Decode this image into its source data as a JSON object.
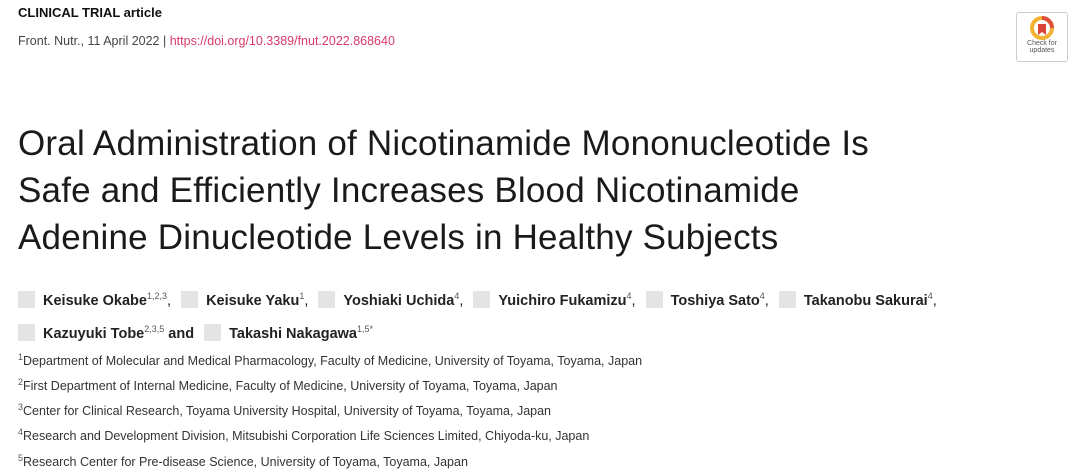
{
  "article_type": "CLINICAL TRIAL article",
  "journal": "Front. Nutr., 11 April 2022 |",
  "doi": "https://doi.org/10.3389/fnut.2022.868640",
  "badge": [
    "Check for",
    "updates"
  ],
  "title_lines": [
    "Oral Administration of Nicotinamide Mononucleotide Is",
    "Safe and Efficiently Increases Blood Nicotinamide",
    "Adenine Dinucleotide Levels in Healthy Subjects"
  ],
  "authors": [
    {
      "name": "Keisuke Okabe",
      "sup": "1,2,3",
      "separator": ","
    },
    {
      "name": "Keisuke Yaku",
      "sup": "1",
      "separator": ","
    },
    {
      "name": "Yoshiaki Uchida",
      "sup": "4",
      "separator": ","
    },
    {
      "name": "Yuichiro Fukamizu",
      "sup": "4",
      "separator": ","
    },
    {
      "name": "Toshiya Sato",
      "sup": "4",
      "separator": ","
    },
    {
      "name": "Takanobu Sakurai",
      "sup": "4",
      "separator": ","
    },
    {
      "name": "Kazuyuki Tobe",
      "sup": "2,3,5",
      "separator": "and"
    },
    {
      "name": "Takashi Nakagawa",
      "sup": "1,5*"
    }
  ],
  "affiliations": [
    {
      "number": "1",
      "text": "Department of Molecular and Medical Pharmacology, Faculty of Medicine, University of Toyama, Toyama, Japan"
    },
    {
      "number": "2",
      "text": "First Department of Internal Medicine, Faculty of Medicine, University of Toyama, Toyama, Japan"
    },
    {
      "number": "3",
      "text": "Center for Clinical Research, Toyama University Hospital, University of Toyama, Toyama, Japan"
    },
    {
      "number": "4",
      "text": "Research and Development Division, Mitsubishi Corporation Life Sciences Limited, Chiyoda-ku, Japan"
    },
    {
      "number": "5",
      "text": "Research Center for Pre-disease Science, University of Toyama, Toyama, Japan"
    }
  ]
}
